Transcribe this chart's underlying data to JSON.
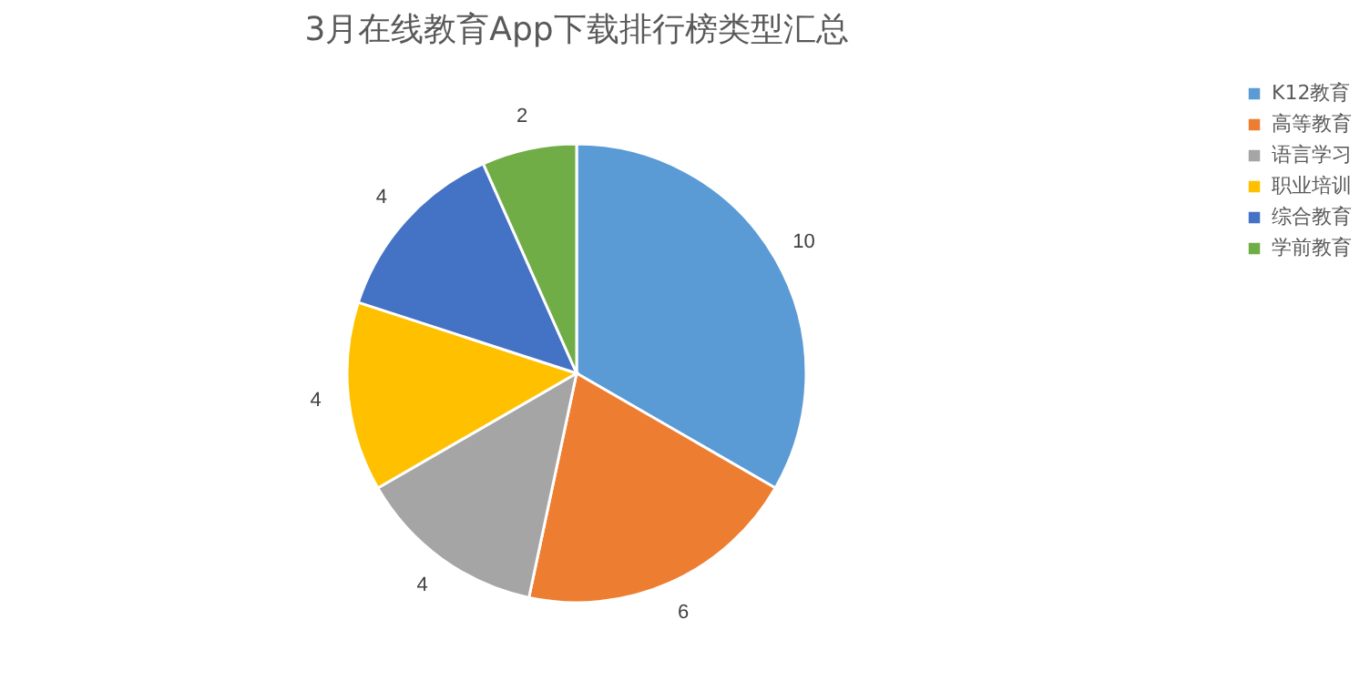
{
  "chart_data": {
    "type": "pie",
    "title": "3月在线教育App下载排行榜类型汇总",
    "categories": [
      "K12教育",
      "高等教育",
      "语言学习",
      "职业培训",
      "综合教育",
      "学前教育"
    ],
    "values": [
      10,
      6,
      4,
      4,
      4,
      2
    ],
    "colors": [
      "#5b9bd5",
      "#ed7d31",
      "#a5a5a5",
      "#ffc000",
      "#4472c4",
      "#70ad47"
    ],
    "data_labels": true,
    "legend": "right"
  }
}
